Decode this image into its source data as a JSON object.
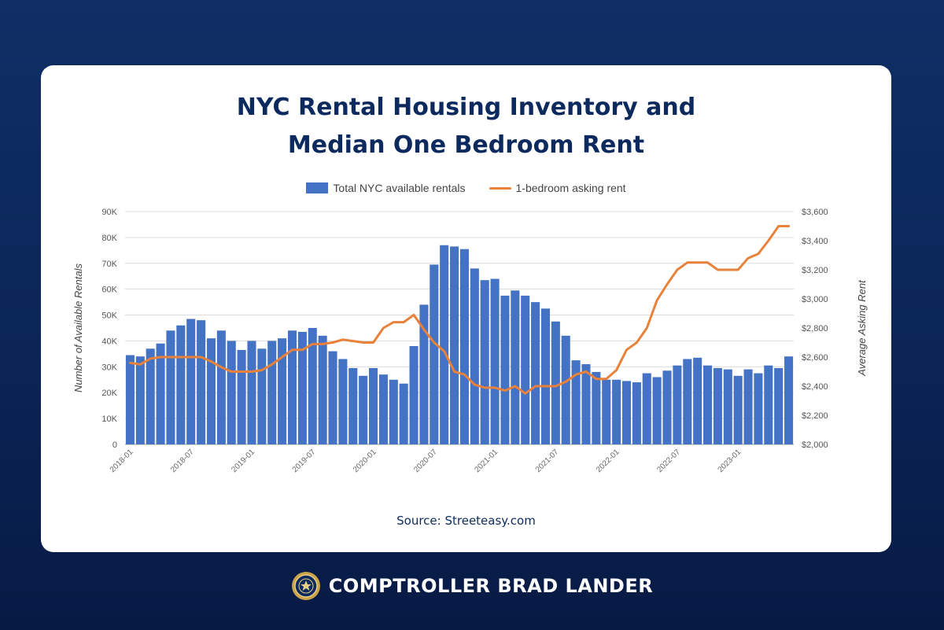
{
  "page": {
    "title_line1": "NYC Rental Housing Inventory and",
    "title_line2": "Median One Bedroom Rent",
    "source": "Source: Streeteasy.com",
    "footer": "COMPTROLLER BRAD LANDER"
  },
  "colors": {
    "bars": "#4472c4",
    "line": "#e8823a",
    "title": "#0c2a5e",
    "background": "#0c2a5e"
  },
  "icons": {
    "footer_logo": "nyc-seal-icon"
  },
  "chart_data": {
    "type": "bar",
    "legend": [
      "Total NYC available rentals",
      "1-bedroom asking rent"
    ],
    "legend_placement": "top-center",
    "grid": true,
    "ylabel": "Number of Available Rentals",
    "y2label": "Average Asking Rent",
    "ylim": [
      0,
      90000
    ],
    "y2lim": [
      2000,
      3600
    ],
    "yticks": [
      "0",
      "10K",
      "20K",
      "30K",
      "40K",
      "50K",
      "60K",
      "70K",
      "80K",
      "90K"
    ],
    "y2ticks": [
      "$2,000",
      "$2,200",
      "$2,400",
      "$2,600",
      "$2,800",
      "$3,000",
      "$3,200",
      "$3,400",
      "$3,600"
    ],
    "x": [
      "2018-01",
      "2018-02",
      "2018-03",
      "2018-04",
      "2018-05",
      "2018-06",
      "2018-07",
      "2018-08",
      "2018-09",
      "2018-10",
      "2018-11",
      "2018-12",
      "2019-01",
      "2019-02",
      "2019-03",
      "2019-04",
      "2019-05",
      "2019-06",
      "2019-07",
      "2019-08",
      "2019-09",
      "2019-10",
      "2019-11",
      "2019-12",
      "2020-01",
      "2020-02",
      "2020-03",
      "2020-04",
      "2020-05",
      "2020-06",
      "2020-07",
      "2020-08",
      "2020-09",
      "2020-10",
      "2020-11",
      "2020-12",
      "2021-01",
      "2021-02",
      "2021-03",
      "2021-04",
      "2021-05",
      "2021-06",
      "2021-07",
      "2021-08",
      "2021-09",
      "2021-10",
      "2021-11",
      "2021-12",
      "2022-01",
      "2022-02",
      "2022-03",
      "2022-04",
      "2022-05",
      "2022-06",
      "2022-07",
      "2022-08",
      "2022-09",
      "2022-10",
      "2022-11",
      "2022-12",
      "2023-01",
      "2023-02",
      "2023-03",
      "2023-04",
      "2023-05",
      "2023-06"
    ],
    "xtick_labels": [
      "2018-01",
      "2018-07",
      "2019-01",
      "2019-07",
      "2020-01",
      "2020-07",
      "2021-01",
      "2021-07",
      "2022-01",
      "2022-07",
      "2023-01"
    ],
    "series": [
      {
        "name": "Total NYC available rentals",
        "type": "bar",
        "axis": "left",
        "values": [
          34500,
          34000,
          37000,
          39000,
          44000,
          46000,
          48500,
          48000,
          41000,
          44000,
          40000,
          36500,
          40000,
          37000,
          40000,
          41000,
          44000,
          43500,
          45000,
          42000,
          36000,
          33000,
          29500,
          26500,
          29500,
          27000,
          25000,
          23500,
          38000,
          54000,
          69500,
          77000,
          76500,
          75500,
          68000,
          63500,
          64000,
          57500,
          59500,
          57500,
          55000,
          52500,
          47500,
          42000,
          32500,
          31000,
          28000,
          25000,
          25000,
          24500,
          24000,
          27500,
          26000,
          28500,
          30500,
          33000,
          33500,
          30500,
          29500,
          29000,
          26500,
          29000,
          27500,
          30500,
          29500,
          34000
        ]
      },
      {
        "name": "1-bedroom asking rent",
        "type": "line",
        "axis": "right",
        "values": [
          2560,
          2550,
          2590,
          2600,
          2600,
          2600,
          2600,
          2600,
          2570,
          2530,
          2500,
          2500,
          2500,
          2510,
          2550,
          2600,
          2650,
          2650,
          2690,
          2690,
          2700,
          2720,
          2710,
          2700,
          2700,
          2800,
          2840,
          2840,
          2890,
          2790,
          2700,
          2640,
          2500,
          2480,
          2410,
          2390,
          2390,
          2370,
          2400,
          2350,
          2400,
          2400,
          2400,
          2430,
          2480,
          2500,
          2450,
          2450,
          2510,
          2650,
          2700,
          2800,
          2990,
          3100,
          3200,
          3250,
          3250,
          3250,
          3200,
          3200,
          3200,
          3280,
          3310,
          3400,
          3500,
          3500
        ]
      }
    ]
  }
}
